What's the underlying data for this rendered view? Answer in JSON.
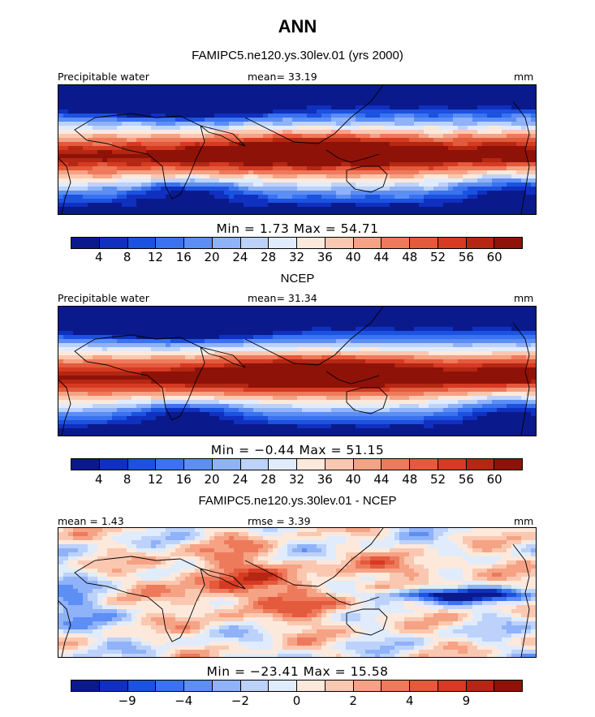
{
  "title": "ANN",
  "colors": {
    "pw": [
      "#0a1a8c",
      "#1030c0",
      "#1c52e0",
      "#3a72f0",
      "#5c8ef4",
      "#8fb2f8",
      "#bcd2fa",
      "#e0ecfc",
      "#fde9dc",
      "#fac8b0",
      "#f5a285",
      "#ee7a5c",
      "#e45a3c",
      "#d63a22",
      "#b42712",
      "#8e1208"
    ],
    "diff": [
      "#0a1a8c",
      "#1030c0",
      "#1c52e0",
      "#3a72f0",
      "#5c8ef4",
      "#8fb2f8",
      "#bcd2fa",
      "#e0ecfc",
      "#fde9dc",
      "#fac8b0",
      "#f5a285",
      "#ee7a5c",
      "#e45a3c",
      "#d63a22",
      "#b42712",
      "#8e1208"
    ]
  },
  "panels": [
    {
      "subtitle": "FAMIPC5.ne120.ys.30lev.01 (yrs 2000)",
      "left_label": "Precipitable water",
      "center_label": "mean=  33.19",
      "right_label": "mm",
      "minmax": "Min =    1.73 Max =  54.71",
      "palette": "pw",
      "ticks": [
        "4",
        "8",
        "12",
        "16",
        "20",
        "24",
        "28",
        "32",
        "36",
        "40",
        "44",
        "48",
        "52",
        "56",
        "60"
      ],
      "pattern": "model"
    },
    {
      "subtitle": "NCEP",
      "left_label": "Precipitable water",
      "center_label": "mean=  31.34",
      "right_label": "mm",
      "minmax": "Min =  −0.44 Max =  51.15",
      "palette": "pw",
      "ticks": [
        "4",
        "8",
        "12",
        "16",
        "20",
        "24",
        "28",
        "32",
        "36",
        "40",
        "44",
        "48",
        "52",
        "56",
        "60"
      ],
      "pattern": "obs"
    },
    {
      "subtitle": "FAMIPC5.ne120.ys.30lev.01 - NCEP",
      "left_label": "mean =    1.43",
      "center_label": "rmse =    3.39",
      "right_label": "mm",
      "minmax": "Min = −23.41 Max =  15.58",
      "palette": "diff",
      "ticks": [
        "−9",
        "−4",
        "−2",
        "0",
        "2",
        "4",
        "9"
      ],
      "pattern": "diff"
    }
  ]
}
